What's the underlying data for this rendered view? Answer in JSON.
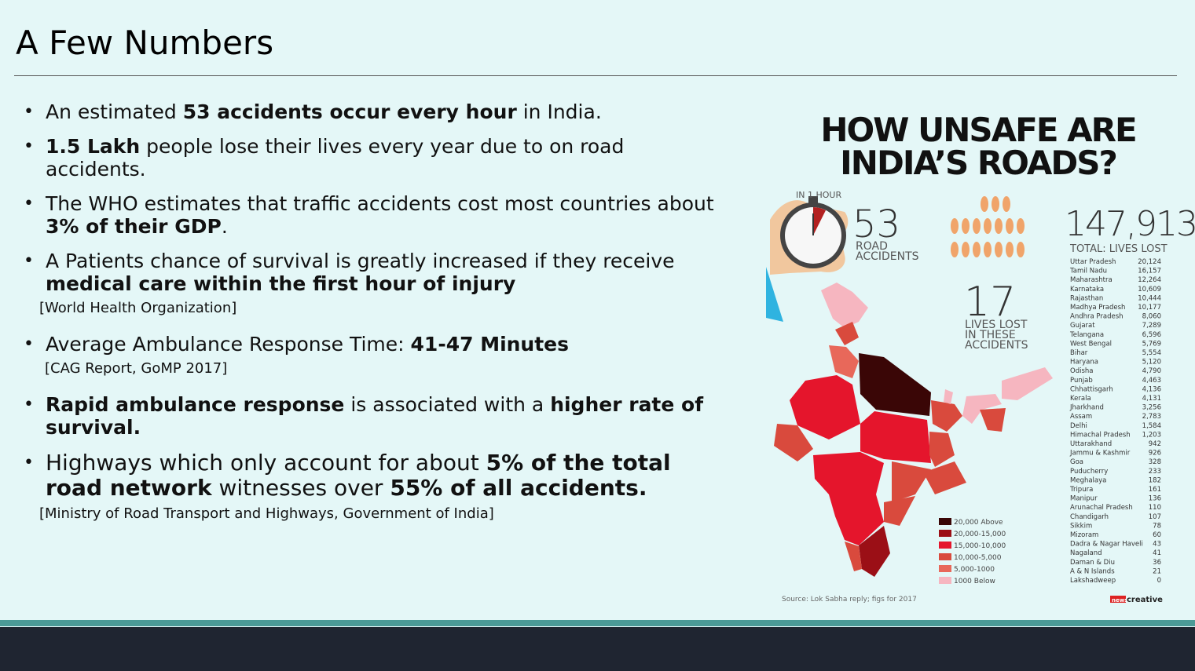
{
  "slide": {
    "title": "A Few Numbers",
    "bullets": [
      {
        "pre": "An estimated ",
        "bold": "53 accidents occur every hour",
        "post": " in India."
      },
      {
        "bold": "1.5 Lakh",
        "post": " people lose their lives every year due to on road accidents."
      },
      {
        "pre": "The WHO estimates that traffic accidents cost most countries about ",
        "bold": "3% of their GDP",
        "post": "."
      },
      {
        "pre": "A Patients chance of survival is greatly increased if they receive ",
        "bold": "medical care within the first hour of injury"
      },
      {
        "pre": "Average Ambulance Response Time: ",
        "bold": "41-47 Minutes"
      },
      {
        "bold1": "Rapid ambulance response",
        "mid": " is associated with a ",
        "bold2": "higher rate of survival."
      },
      {
        "pre": "Highways which only account for about ",
        "bold1": "5% of the total road network",
        "mid": " witnesses over ",
        "bold2": "55% of all accidents."
      }
    ],
    "sources": [
      "[World Health Organization]",
      "[CAG Report, GoMP 2017]",
      "[Ministry of Road Transport and Highways, Government of India]"
    ]
  },
  "infographic": {
    "title_line1": "HOW UNSAFE ARE",
    "title_line2": "INDIA’S ROADS?",
    "hour_label": "IN 1 HOUR",
    "accidents_num": "53",
    "accidents_l1": "ROAD",
    "accidents_l2": "ACCIDENTS",
    "lives_num": "17",
    "lives_l1": "LIVES LOST",
    "lives_l2": "IN THESE",
    "lives_l3": "ACCIDENTS",
    "total_num": "147,913",
    "total_label": "TOTAL: LIVES LOST",
    "states": [
      [
        "Uttar Pradesh",
        "20,124"
      ],
      [
        "Tamil Nadu",
        "16,157"
      ],
      [
        "Maharashtra",
        "12,264"
      ],
      [
        "Karnataka",
        "10,609"
      ],
      [
        "Rajasthan",
        "10,444"
      ],
      [
        "Madhya Pradesh",
        "10,177"
      ],
      [
        "Andhra Pradesh",
        "8,060"
      ],
      [
        "Gujarat",
        "7,289"
      ],
      [
        "Telangana",
        "6,596"
      ],
      [
        "West Bengal",
        "5,769"
      ],
      [
        "Bihar",
        "5,554"
      ],
      [
        "Haryana",
        "5,120"
      ],
      [
        "Odisha",
        "4,790"
      ],
      [
        "Punjab",
        "4,463"
      ],
      [
        "Chhattisgarh",
        "4,136"
      ],
      [
        "Kerala",
        "4,131"
      ],
      [
        "Jharkhand",
        "3,256"
      ],
      [
        "Assam",
        "2,783"
      ],
      [
        "Delhi",
        "1,584"
      ],
      [
        "Himachal Pradesh",
        "1,203"
      ],
      [
        "Uttarakhand",
        "942"
      ],
      [
        "Jammu & Kashmir",
        "926"
      ],
      [
        "Goa",
        "328"
      ],
      [
        "Puducherry",
        "233"
      ],
      [
        "Meghalaya",
        "182"
      ],
      [
        "Tripura",
        "161"
      ],
      [
        "Manipur",
        "136"
      ],
      [
        "Arunachal Pradesh",
        "110"
      ],
      [
        "Chandigarh",
        "107"
      ],
      [
        "Sikkim",
        "78"
      ],
      [
        "Mizoram",
        "60"
      ],
      [
        "Dadra & Nagar Haveli",
        "43"
      ],
      [
        "Nagaland",
        "41"
      ],
      [
        "Daman & Diu",
        "36"
      ],
      [
        "A & N Islands",
        "21"
      ],
      [
        "Lakshadweep",
        "0"
      ]
    ],
    "legend": [
      {
        "label": "20,000 Above",
        "color": "#3a0606"
      },
      {
        "label": "20,000-15,000",
        "color": "#9b0f16"
      },
      {
        "label": "15,000-10,000",
        "color": "#e5152c"
      },
      {
        "label": "10,000-5,000",
        "color": "#d94a3d"
      },
      {
        "label": "5,000-1000",
        "color": "#e8685a"
      },
      {
        "label": "1000 Below",
        "color": "#f6b6c0"
      }
    ],
    "source": "Source: Lok Sabha reply; figs for 2017",
    "brand_a": "news",
    "brand_b": "creative"
  }
}
